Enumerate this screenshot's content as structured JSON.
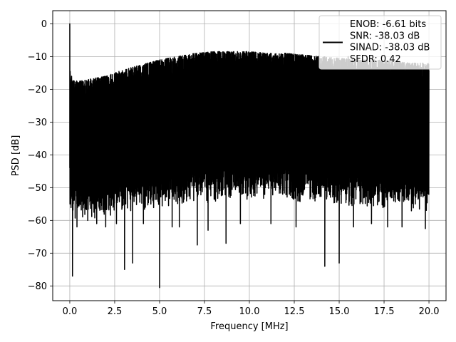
{
  "chart_data": {
    "type": "line",
    "title": "",
    "xlabel": "Frequency [MHz]",
    "ylabel": "PSD [dB]",
    "xlim": [
      -0.95,
      20.95
    ],
    "ylim": [
      -84.5,
      4.0
    ],
    "xticks": [
      0.0,
      2.5,
      5.0,
      7.5,
      10.0,
      12.5,
      15.0,
      17.5,
      20.0
    ],
    "xtick_labels": [
      "0.0",
      "2.5",
      "5.0",
      "7.5",
      "10.0",
      "12.5",
      "15.0",
      "17.5",
      "20.0"
    ],
    "yticks": [
      0,
      -10,
      -20,
      -30,
      -40,
      -50,
      -60,
      -70,
      -80
    ],
    "ytick_labels": [
      "0",
      "−10",
      "−20",
      "−30",
      "−40",
      "−50",
      "−60",
      "−70",
      "−80"
    ],
    "grid": true,
    "line_color": "#000000",
    "legend": {
      "placement": "upper right",
      "lines": [
        "ENOB: -6.61 bits",
        "SNR: -38.03 dB",
        "SINAD: -38.03 dB",
        "SFDR: 0.42"
      ]
    },
    "series": [
      {
        "description": "dense noisy power spectral density trace from 0 to 20 MHz",
        "upper_envelope": {
          "x": [
            0,
            0.3,
            1,
            2,
            3,
            4,
            5,
            6,
            7,
            8,
            9,
            10,
            11,
            12,
            13,
            14,
            15,
            16,
            17,
            18,
            19,
            20
          ],
          "y": [
            -17,
            -17.5,
            -17,
            -16,
            -14,
            -12.5,
            -11,
            -10,
            -9,
            -8.5,
            -8.5,
            -8.5,
            -9,
            -9,
            -9.5,
            -10,
            -10.5,
            -11,
            -11,
            -11.5,
            -12,
            -12
          ]
        },
        "lower_envelope": {
          "x": [
            0,
            0.5,
            1,
            2,
            3,
            4,
            5,
            6,
            7,
            8,
            9,
            10,
            11,
            12,
            13,
            14,
            15,
            16,
            17,
            18,
            19,
            20
          ],
          "y": [
            -57,
            -58,
            -58,
            -57,
            -56,
            -55,
            -55,
            -54,
            -53,
            -53,
            -52,
            -52,
            -52,
            -52,
            -53,
            -53,
            -54,
            -54,
            -55,
            -55,
            -56,
            -56
          ]
        },
        "peaks": [
          {
            "x": 0.0,
            "y": 0.0
          },
          {
            "x": 0.02,
            "y": -14.5
          },
          {
            "x": 0.1,
            "y": -16
          },
          {
            "x": 3.5,
            "y": -16
          },
          {
            "x": 4.6,
            "y": -13.5
          },
          {
            "x": 5.2,
            "y": -12.5
          },
          {
            "x": 7.0,
            "y": -9.5
          },
          {
            "x": 8.7,
            "y": -8.5
          },
          {
            "x": 10.0,
            "y": -9.0
          },
          {
            "x": 12.6,
            "y": -9.5
          },
          {
            "x": 15.5,
            "y": -10.0
          },
          {
            "x": 17.7,
            "y": -10.5
          }
        ],
        "dips": [
          {
            "x": 0.15,
            "y": -77.0
          },
          {
            "x": 0.4,
            "y": -62.0
          },
          {
            "x": 1.0,
            "y": -60.0
          },
          {
            "x": 1.5,
            "y": -61.0
          },
          {
            "x": 2.0,
            "y": -62.0
          },
          {
            "x": 2.6,
            "y": -61.0
          },
          {
            "x": 3.05,
            "y": -75.0
          },
          {
            "x": 3.5,
            "y": -73.0
          },
          {
            "x": 4.1,
            "y": -61.0
          },
          {
            "x": 5.0,
            "y": -80.5
          },
          {
            "x": 5.7,
            "y": -62.0
          },
          {
            "x": 6.1,
            "y": -62.0
          },
          {
            "x": 7.1,
            "y": -67.5
          },
          {
            "x": 7.7,
            "y": -63.0
          },
          {
            "x": 8.7,
            "y": -67.0
          },
          {
            "x": 9.5,
            "y": -61.0
          },
          {
            "x": 11.2,
            "y": -61.0
          },
          {
            "x": 12.6,
            "y": -62.0
          },
          {
            "x": 14.2,
            "y": -74.0
          },
          {
            "x": 15.0,
            "y": -73.0
          },
          {
            "x": 15.8,
            "y": -62.0
          },
          {
            "x": 16.8,
            "y": -61.0
          },
          {
            "x": 17.7,
            "y": -62.0
          },
          {
            "x": 18.5,
            "y": -62.0
          },
          {
            "x": 19.8,
            "y": -62.5
          }
        ]
      }
    ]
  }
}
